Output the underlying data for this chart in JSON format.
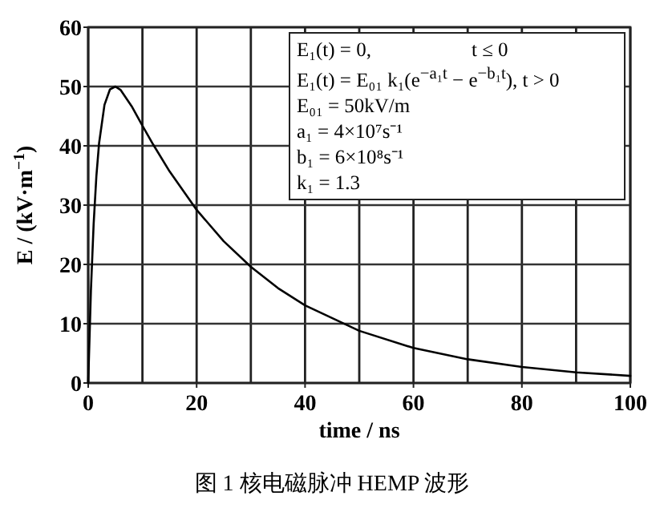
{
  "chart_data": {
    "type": "line",
    "xlabel": "time / ns",
    "ylabel": "E / (kV·m$^{−1}$)",
    "x": [
      0,
      0.5,
      1,
      1.5,
      2,
      3,
      4,
      5,
      6,
      8,
      10,
      12,
      15,
      20,
      25,
      30,
      35,
      40,
      50,
      60,
      70,
      80,
      90,
      100
    ],
    "series": [
      {
        "color": "#000000",
        "values": [
          0,
          15.6,
          26.8,
          34.8,
          40.4,
          46.9,
          49.5,
          50.0,
          49.4,
          46.7,
          43.4,
          40.2,
          35.7,
          29.2,
          23.9,
          19.6,
          16.0,
          13.1,
          8.8,
          5.9,
          4.0,
          2.7,
          1.8,
          1.2
        ]
      }
    ],
    "xlim": [
      0,
      100
    ],
    "ylim": [
      0,
      60
    ],
    "xticks": [
      0,
      20,
      40,
      60,
      80,
      100
    ],
    "yticks": [
      0,
      10,
      20,
      30,
      40,
      50,
      60
    ],
    "grid": true,
    "annotations": [
      "E₁(t) = 0,                    t ≤ 0",
      "E₁(t) = E₀₁ k₁(e$^{−a₁t}$ − e$^{−b₁t}$), t > 0",
      "E₀₁ = 50kV/m",
      "a₁ = 4×10⁷s⁻¹",
      "b₁ = 6×10⁸s⁻¹",
      "k₁ = 1.3",
      "图 1 核电磁脉冲 HEMP 波形"
    ]
  }
}
